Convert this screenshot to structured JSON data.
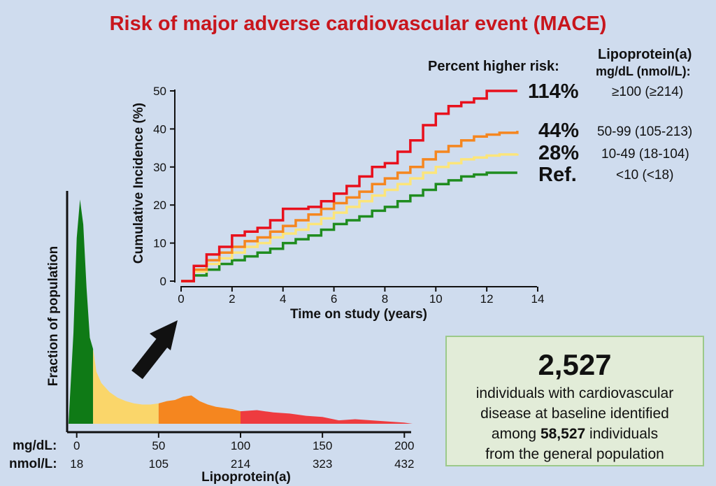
{
  "title": "Risk of major adverse cardiovascular event (MACE)",
  "legend_header": {
    "risk_label": "Percent higher risk:",
    "lpa_label": "Lipoprotein(a)",
    "lpa_units": "mg/dL (nmol/L):"
  },
  "groups": [
    {
      "risk": "114%",
      "range": "≥100 (≥214)",
      "color": "#e8101c"
    },
    {
      "risk": "44%",
      "range": "50-99 (105-213)",
      "color": "#f5861f"
    },
    {
      "risk": "28%",
      "range": "10-49 (18-104)",
      "color": "#fce57a"
    },
    {
      "risk": "Ref.",
      "range": "<10 (<18)",
      "color": "#1f8c1f"
    }
  ],
  "infobox": {
    "count": "2,527",
    "line1": "individuals with cardiovascular",
    "line2": "disease at baseline identified",
    "line3_pre": "among ",
    "line3_bold": "58,527",
    "line3_post": " individuals",
    "line4": "from the general population"
  },
  "chart_data": [
    {
      "type": "line",
      "xlabel": "Time on study (years)",
      "ylabel": "Cumulative Incidence (%)",
      "xlim": [
        0,
        14
      ],
      "ylim": [
        0,
        50
      ],
      "xticks": [
        0,
        2,
        4,
        6,
        8,
        10,
        12,
        14
      ],
      "yticks": [
        0,
        10,
        20,
        30,
        40,
        50
      ],
      "series": [
        {
          "color": "#e8101c",
          "x": [
            0,
            0.5,
            1,
            1.5,
            2,
            2.5,
            3,
            3.5,
            4,
            4.5,
            5,
            5.5,
            6,
            6.5,
            7,
            7.5,
            8,
            8.5,
            9,
            9.5,
            10,
            10.5,
            11,
            11.5,
            12,
            12.5,
            13.2
          ],
          "y": [
            0,
            4,
            7,
            9,
            12,
            13,
            14,
            16,
            19,
            19,
            19.5,
            21,
            23,
            25,
            27.5,
            30,
            31,
            34,
            37,
            41,
            44,
            46,
            47,
            48,
            50,
            50,
            50
          ]
        },
        {
          "color": "#f5861f",
          "x": [
            0,
            0.5,
            1,
            1.5,
            2,
            2.5,
            3,
            3.5,
            4,
            4.5,
            5,
            5.5,
            6,
            6.5,
            7,
            7.5,
            8,
            8.5,
            9,
            9.5,
            10,
            10.5,
            11,
            11.5,
            12,
            12.5,
            13.2
          ],
          "y": [
            0,
            3,
            5.5,
            7.5,
            9,
            10.5,
            11.5,
            13,
            14.5,
            16,
            17.5,
            19,
            20.5,
            22,
            23.5,
            25.5,
            27,
            28.5,
            30,
            32,
            34,
            35.5,
            37,
            38,
            38.5,
            39,
            39.5
          ]
        },
        {
          "color": "#fce57a",
          "x": [
            0,
            0.5,
            1,
            1.5,
            2,
            2.5,
            3,
            3.5,
            4,
            4.5,
            5,
            5.5,
            6,
            6.5,
            7,
            7.5,
            8,
            8.5,
            9,
            9.5,
            10,
            10.5,
            11,
            11.5,
            12,
            12.5,
            13.2
          ],
          "y": [
            0,
            2.5,
            4.5,
            6,
            7.5,
            9,
            10,
            11.5,
            12.5,
            13.5,
            15,
            16.5,
            18,
            19.5,
            21,
            22.5,
            24,
            25.5,
            27,
            28.5,
            30,
            31,
            32,
            32.5,
            33,
            33.3,
            33.5
          ]
        },
        {
          "color": "#1f8c1f",
          "x": [
            0,
            0.5,
            1,
            1.5,
            2,
            2.5,
            3,
            3.5,
            4,
            4.5,
            5,
            5.5,
            6,
            6.5,
            7,
            7.5,
            8,
            8.5,
            9,
            9.5,
            10,
            10.5,
            11,
            11.5,
            12,
            12.5,
            13.2
          ],
          "y": [
            0,
            1.5,
            3,
            4.5,
            5.5,
            6.5,
            7.5,
            8.5,
            10,
            11,
            12,
            13.5,
            15,
            16,
            17,
            18.5,
            19.5,
            21,
            22.5,
            24,
            25.5,
            26.5,
            27.5,
            28,
            28.5,
            28.5,
            28.5
          ]
        }
      ]
    },
    {
      "type": "area",
      "ylabel": "Fraction of population",
      "xlabel": "Lipoprotein(a)",
      "row_labels": [
        "mg/dL:",
        "nmol/L:"
      ],
      "ticks_mgdl": [
        "0",
        "50",
        "100",
        "150",
        "200"
      ],
      "ticks_nmol": [
        "18",
        "105",
        "214",
        "323",
        "432"
      ],
      "tick_values": [
        0,
        50,
        100,
        150,
        200
      ],
      "xlim": [
        -5,
        205
      ],
      "ylim": [
        0,
        100
      ],
      "bins": [
        {
          "from": -5,
          "to": 10,
          "color": "#0f7a16"
        },
        {
          "from": 10,
          "to": 50,
          "color": "#fad66a"
        },
        {
          "from": 50,
          "to": 100,
          "color": "#f5861f"
        },
        {
          "from": 100,
          "to": 205,
          "color": "#ee3b3f"
        }
      ],
      "x": [
        -5,
        -2,
        0,
        2,
        4,
        6,
        8,
        10,
        12,
        15,
        20,
        25,
        30,
        35,
        40,
        45,
        50,
        55,
        60,
        65,
        70,
        75,
        80,
        85,
        90,
        95,
        100,
        110,
        120,
        130,
        140,
        150,
        160,
        170,
        180,
        190,
        200,
        205
      ],
      "y": [
        0,
        40,
        82,
        99,
        88,
        60,
        38,
        33,
        23,
        18,
        14,
        11.5,
        10,
        9,
        8.5,
        8.5,
        9,
        10,
        10.5,
        12,
        12.5,
        10,
        8.5,
        7.5,
        7,
        6.5,
        5.5,
        6,
        5,
        4.5,
        3.5,
        3,
        1.5,
        2,
        1.5,
        1,
        0.5,
        0
      ]
    }
  ]
}
